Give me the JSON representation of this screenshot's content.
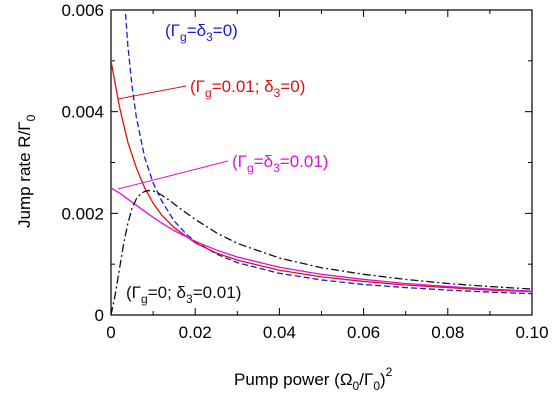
{
  "chart_data": {
    "type": "line",
    "xlabel": {
      "main": "Pump power (Ω",
      "sub1": "0",
      "mid": "/Γ",
      "sub2": "0",
      "end": ")",
      "sup": "2"
    },
    "ylabel": {
      "main": "Jump rate R/Γ",
      "sub": "0"
    },
    "xlim": [
      0,
      0.1
    ],
    "ylim": [
      0,
      0.006
    ],
    "x_ticks": [
      "0",
      "0.02",
      "0.04",
      "0.06",
      "0.08",
      "0.10"
    ],
    "x_tick_values": [
      0,
      0.02,
      0.04,
      0.06,
      0.08,
      0.1
    ],
    "y_ticks": [
      "0",
      "0.002",
      "0.004",
      "0.006"
    ],
    "y_tick_values": [
      0,
      0.002,
      0.004,
      0.006
    ],
    "grid": false,
    "series": [
      {
        "label_parts": [
          "(Γ",
          "g",
          "=δ",
          "3",
          "=0)"
        ],
        "color": "#1a1ad9",
        "dash": "6,3",
        "x": [
          0.0033,
          0.004,
          0.005,
          0.006,
          0.008,
          0.01,
          0.012,
          0.015,
          0.018,
          0.02,
          0.025,
          0.03,
          0.04,
          0.05,
          0.06,
          0.07,
          0.08,
          0.09,
          0.1
        ],
        "y": [
          0.0061,
          0.0053,
          0.0045,
          0.0039,
          0.0031,
          0.0026,
          0.00225,
          0.00185,
          0.00158,
          0.00145,
          0.0012,
          0.00103,
          0.00082,
          0.00069,
          0.0006,
          0.00054,
          0.00049,
          0.00045,
          0.00042
        ]
      },
      {
        "label_parts": [
          "(Γ",
          "g",
          "=0.01; δ",
          "3",
          "=0)"
        ],
        "color": "#e01010",
        "dash": "",
        "x": [
          0,
          0.002,
          0.004,
          0.006,
          0.008,
          0.01,
          0.012,
          0.015,
          0.02,
          0.025,
          0.03,
          0.04,
          0.05,
          0.06,
          0.07,
          0.08,
          0.09,
          0.1
        ],
        "y": [
          0.005,
          0.0041,
          0.0034,
          0.0029,
          0.0025,
          0.0022,
          0.00197,
          0.00172,
          0.00142,
          0.00122,
          0.00108,
          0.00088,
          0.00075,
          0.00066,
          0.00059,
          0.00054,
          0.00049,
          0.00046
        ]
      },
      {
        "label_parts": [
          "(Γ",
          "g",
          "=δ",
          "3",
          "=0.01)"
        ],
        "color": "#dd10dd",
        "dash": "",
        "x": [
          0,
          0.002,
          0.004,
          0.006,
          0.008,
          0.01,
          0.012,
          0.015,
          0.02,
          0.025,
          0.03,
          0.04,
          0.05,
          0.06,
          0.07,
          0.08,
          0.09,
          0.1
        ],
        "y": [
          0.0025,
          0.0024,
          0.00228,
          0.00216,
          0.00204,
          0.00192,
          0.00181,
          0.00166,
          0.00145,
          0.00128,
          0.00114,
          0.00094,
          0.0008,
          0.0007,
          0.00062,
          0.00056,
          0.00051,
          0.00047
        ]
      },
      {
        "label_parts": [
          "(Γ",
          "g",
          "=0; δ",
          "3",
          "=0.01)"
        ],
        "color": "#111111",
        "dash": "8,3,2,3",
        "x": [
          0,
          0.001,
          0.002,
          0.003,
          0.004,
          0.005,
          0.006,
          0.007,
          0.008,
          0.009,
          0.01,
          0.011,
          0.012,
          0.014,
          0.016,
          0.02,
          0.025,
          0.03,
          0.04,
          0.05,
          0.06,
          0.07,
          0.08,
          0.09,
          0.1
        ],
        "y": [
          0,
          0.0004,
          0.0009,
          0.0014,
          0.0018,
          0.0021,
          0.00228,
          0.00238,
          0.00243,
          0.00245,
          0.00244,
          0.00241,
          0.00236,
          0.00225,
          0.00212,
          0.00188,
          0.00162,
          0.00141,
          0.00112,
          0.00093,
          0.0008,
          0.0007,
          0.00062,
          0.00056,
          0.00051
        ]
      }
    ]
  }
}
